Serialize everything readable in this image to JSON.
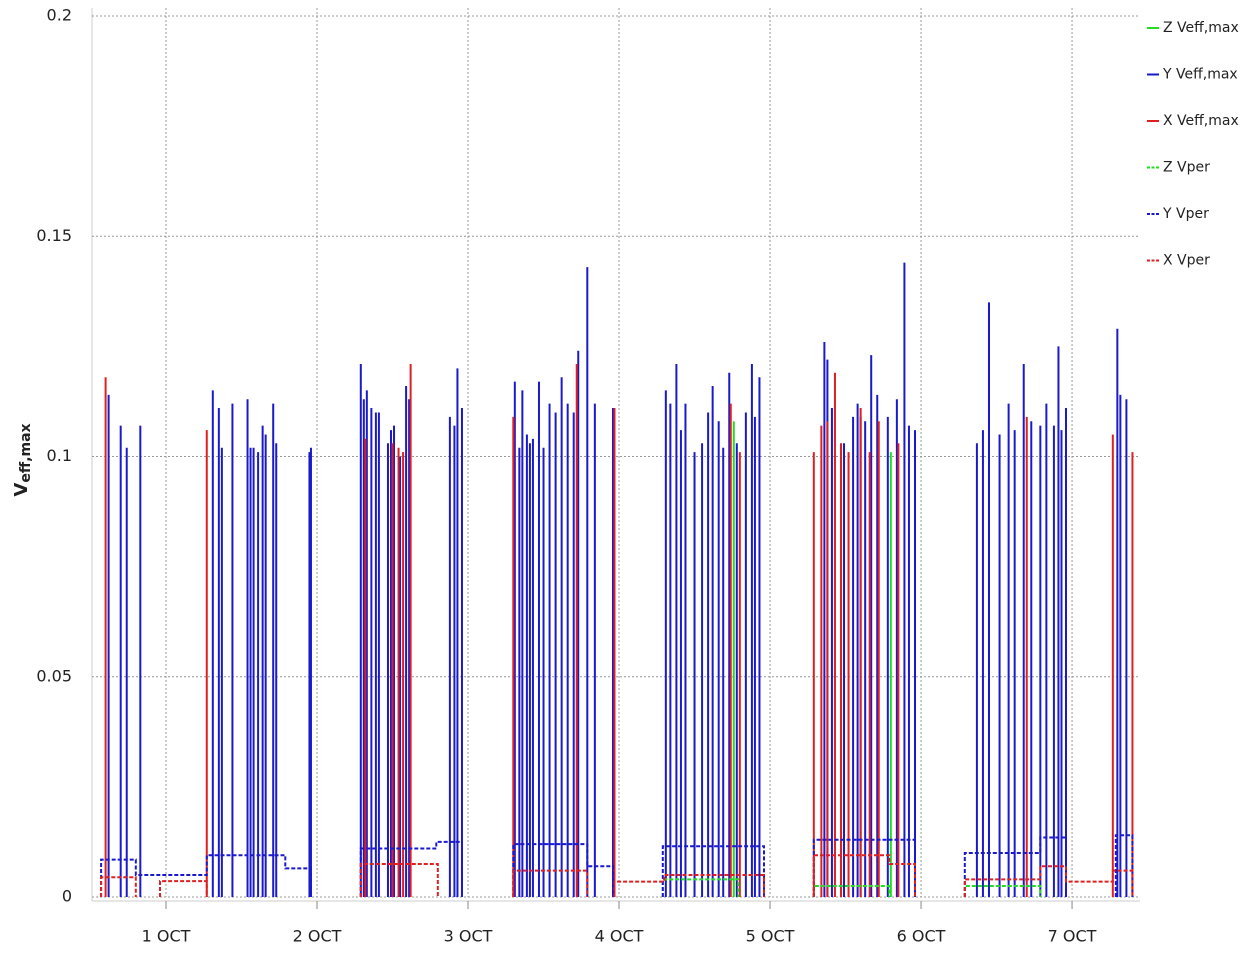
{
  "chart_data": {
    "type": "line",
    "y_label": "V",
    "y_label_sub": "eff,max",
    "xlim": [
      0.51,
      7.45
    ],
    "xticks": [
      {
        "value": 1,
        "label": "1 OCT"
      },
      {
        "value": 2,
        "label": "2 OCT"
      },
      {
        "value": 3,
        "label": "3 OCT"
      },
      {
        "value": 4,
        "label": "4 OCT"
      },
      {
        "value": 5,
        "label": "5 OCT"
      },
      {
        "value": 6,
        "label": "6 OCT"
      },
      {
        "value": 7,
        "label": "7 OCT"
      }
    ],
    "ylim": [
      0,
      0.2
    ],
    "yticks": [
      0,
      0.05,
      0.1,
      0.15,
      0.2
    ],
    "grid": true,
    "legend": "right",
    "series": [
      {
        "name": "Z Veff,max",
        "color": "#22dd22",
        "style": "stem",
        "x": [
          4.5,
          4.76,
          5.8
        ],
        "values": [
          0.1,
          0.108,
          0.101
        ]
      },
      {
        "name": "Y Veff,max",
        "color": "#1a1acc",
        "style": "stem",
        "x": [
          0.62,
          0.7,
          0.74,
          0.83,
          1.31,
          1.35,
          1.37,
          1.44,
          1.54,
          1.56,
          1.58,
          1.61,
          1.64,
          1.66,
          1.71,
          1.73,
          1.95,
          1.96,
          2.29,
          2.31,
          2.33,
          2.36,
          2.39,
          2.41,
          2.47,
          2.49,
          2.51,
          2.55,
          2.59,
          2.61,
          2.88,
          2.91,
          2.93,
          2.96,
          3.31,
          3.34,
          3.36,
          3.39,
          3.41,
          3.43,
          3.47,
          3.5,
          3.54,
          3.58,
          3.62,
          3.66,
          3.7,
          3.73,
          3.79,
          3.84,
          3.96,
          4.31,
          4.34,
          4.38,
          4.41,
          4.44,
          4.5,
          4.55,
          4.59,
          4.62,
          4.66,
          4.69,
          4.73,
          4.78,
          4.84,
          4.88,
          4.9,
          4.93,
          5.36,
          5.38,
          5.41,
          5.49,
          5.55,
          5.58,
          5.6,
          5.63,
          5.67,
          5.71,
          5.78,
          5.84,
          5.89,
          5.92,
          5.96,
          6.37,
          6.41,
          6.45,
          6.52,
          6.58,
          6.62,
          6.68,
          6.73,
          6.79,
          6.83,
          6.88,
          6.91,
          6.93,
          6.96,
          7.3,
          7.32,
          7.36
        ],
        "values": [
          0.114,
          0.107,
          0.102,
          0.107,
          0.115,
          0.111,
          0.102,
          0.112,
          0.113,
          0.102,
          0.102,
          0.101,
          0.107,
          0.105,
          0.112,
          0.103,
          0.101,
          0.102,
          0.121,
          0.113,
          0.115,
          0.111,
          0.11,
          0.11,
          0.103,
          0.106,
          0.107,
          0.1,
          0.116,
          0.113,
          0.109,
          0.107,
          0.12,
          0.111,
          0.117,
          0.102,
          0.115,
          0.105,
          0.103,
          0.104,
          0.117,
          0.102,
          0.112,
          0.11,
          0.118,
          0.112,
          0.11,
          0.124,
          0.143,
          0.112,
          0.111,
          0.115,
          0.112,
          0.121,
          0.106,
          0.112,
          0.101,
          0.103,
          0.11,
          0.116,
          0.108,
          0.102,
          0.119,
          0.103,
          0.11,
          0.121,
          0.109,
          0.118,
          0.126,
          0.122,
          0.111,
          0.103,
          0.109,
          0.112,
          0.109,
          0.108,
          0.123,
          0.114,
          0.109,
          0.113,
          0.144,
          0.107,
          0.106,
          0.103,
          0.106,
          0.135,
          0.105,
          0.112,
          0.106,
          0.121,
          0.108,
          0.107,
          0.112,
          0.107,
          0.125,
          0.106,
          0.111,
          0.129,
          0.114,
          0.113
        ]
      },
      {
        "name": "X Veff,max",
        "color": "#e02020",
        "style": "stem",
        "x": [
          0.6,
          1.27,
          2.32,
          2.5,
          2.54,
          2.57,
          2.62,
          3.3,
          3.72,
          3.97,
          4.74,
          4.8,
          5.29,
          5.34,
          5.38,
          5.43,
          5.47,
          5.52,
          5.6,
          5.66,
          5.72,
          5.85,
          6.7,
          7.27,
          7.4
        ],
        "values": [
          0.118,
          0.106,
          0.104,
          0.103,
          0.102,
          0.101,
          0.121,
          0.109,
          0.121,
          0.111,
          0.112,
          0.101,
          0.101,
          0.107,
          0.108,
          0.119,
          0.103,
          0.101,
          0.111,
          0.101,
          0.108,
          0.103,
          0.109,
          0.105,
          0.101
        ]
      },
      {
        "name": "Z Vper",
        "color": "#22dd22",
        "style": "dashed",
        "x": [
          4.29,
          4.29,
          4.79,
          4.79,
          null,
          5.29,
          5.29,
          5.79,
          5.79,
          null,
          6.29,
          6.29,
          6.79,
          6.79
        ],
        "values": [
          0,
          0.004,
          0.004,
          0,
          null,
          0,
          0.0025,
          0.0025,
          0,
          null,
          0,
          0.0025,
          0.0025,
          0
        ]
      },
      {
        "name": "Y Vper",
        "color": "#1a1acc",
        "style": "dashed",
        "x": [
          0.57,
          0.57,
          0.8,
          0.8,
          1.27,
          1.27,
          1.79,
          1.79,
          1.96,
          1.96,
          null,
          2.29,
          2.29,
          2.79,
          2.79,
          2.96,
          2.96,
          null,
          3.3,
          3.3,
          3.79,
          3.79,
          3.96,
          3.96,
          null,
          4.29,
          4.29,
          4.96,
          4.96,
          null,
          5.29,
          5.29,
          5.96,
          5.96,
          null,
          6.29,
          6.29,
          6.79,
          6.79,
          6.96,
          6.96,
          null,
          7.29,
          7.29,
          7.4,
          7.4
        ],
        "values": [
          0,
          0.0085,
          0.0085,
          0.005,
          0.005,
          0.0095,
          0.0095,
          0.0065,
          0.0065,
          0,
          null,
          0,
          0.011,
          0.011,
          0.0125,
          0.0125,
          0,
          null,
          0,
          0.012,
          0.012,
          0.007,
          0.007,
          0,
          null,
          0,
          0.0115,
          0.0115,
          0,
          null,
          0,
          0.013,
          0.013,
          0,
          null,
          0,
          0.01,
          0.01,
          0.0135,
          0.0135,
          0,
          null,
          0,
          0.014,
          0.014,
          0
        ]
      },
      {
        "name": "X Vper",
        "color": "#e02020",
        "style": "dashed",
        "x": [
          0.57,
          0.57,
          0.8,
          0.8,
          null,
          0.96,
          0.96,
          1.27,
          1.27,
          null,
          2.29,
          2.29,
          2.8,
          2.8,
          null,
          3.3,
          3.3,
          3.79,
          3.79,
          null,
          3.97,
          3.97,
          4.3,
          4.3,
          4.96,
          4.96,
          null,
          5.29,
          5.29,
          5.79,
          5.79,
          5.96,
          5.96,
          null,
          6.29,
          6.29,
          6.79,
          6.79,
          6.96,
          6.96,
          7.27,
          7.27,
          7.4,
          7.4
        ],
        "values": [
          0,
          0.0045,
          0.0045,
          0,
          null,
          0,
          0.0036,
          0.0036,
          0,
          null,
          0,
          0.0075,
          0.0075,
          0,
          null,
          0,
          0.006,
          0.006,
          0,
          null,
          0,
          0.0035,
          0.0035,
          0.005,
          0.005,
          0,
          null,
          0,
          0.0095,
          0.0095,
          0.0075,
          0.0075,
          0,
          null,
          0,
          0.004,
          0.004,
          0.007,
          0.007,
          0.0035,
          0.0035,
          0.006,
          0.006,
          0
        ]
      }
    ]
  }
}
